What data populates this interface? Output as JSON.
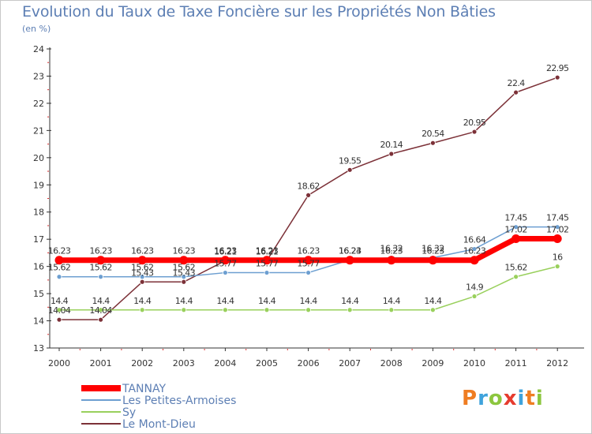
{
  "header": {
    "title": "Evolution du Taux de Taxe Foncière sur les Propriétés Non Bâties",
    "unit": "(en %)"
  },
  "brand": {
    "name": "Proxiti",
    "letters": [
      "P",
      "r",
      "o",
      "x",
      "i",
      "t",
      "i"
    ],
    "colors": [
      "#ef7d22",
      "#3fa3dc",
      "#8cc63e",
      "#e63b2e",
      "#3fa3dc",
      "#ef7d22",
      "#8cc63e"
    ]
  },
  "chart_data": {
    "type": "line",
    "title": "Evolution du Taux de Taxe Foncière sur les Propriétés Non Bâties",
    "ylabel": "(en %)",
    "xlabel": "",
    "x": [
      "2000",
      "2001",
      "2002",
      "2003",
      "2004",
      "2005",
      "2006",
      "2007",
      "2008",
      "2009",
      "2010",
      "2011",
      "2012"
    ],
    "ylim": [
      13,
      24
    ],
    "yticks": [
      "13",
      "14",
      "15",
      "16",
      "17",
      "18",
      "19",
      "20",
      "21",
      "22",
      "23",
      "24"
    ],
    "grid": false,
    "legend_position": "bottom-left",
    "series": [
      {
        "name": "TANNAY",
        "color": "#ff0000",
        "values": [
          16.23,
          16.23,
          16.23,
          16.23,
          16.23,
          16.23,
          16.23,
          16.23,
          16.23,
          16.23,
          16.23,
          17.02,
          17.02
        ],
        "labels": [
          "16.23",
          "16.23",
          "16.23",
          "16.23",
          "16.23",
          "16.23",
          "16.23",
          "16.23",
          "16.23",
          "16.23",
          "16.23",
          "17.02",
          "17.02"
        ]
      },
      {
        "name": "Les Petites-Armoises",
        "color": "#6d9fd1",
        "values": [
          15.62,
          15.62,
          15.62,
          15.62,
          15.77,
          15.77,
          15.77,
          16.24,
          16.32,
          16.32,
          16.64,
          17.45,
          17.45
        ],
        "labels": [
          "15.62",
          "15.62",
          "15.62",
          "15.62",
          "15.77",
          "15.77",
          "15.77",
          "16.24",
          "16.32",
          "16.32",
          "16.64",
          "17.45",
          "17.45"
        ]
      },
      {
        "name": "Sy",
        "color": "#99d05c",
        "values": [
          14.4,
          14.4,
          14.4,
          14.4,
          14.4,
          14.4,
          14.4,
          14.4,
          14.4,
          14.4,
          14.9,
          15.62,
          16
        ],
        "labels": [
          "14.4",
          "14.4",
          "14.4",
          "14.4",
          "14.4",
          "14.4",
          "14.4",
          "14.4",
          "14.4",
          "14.4",
          "14.9",
          "15.62",
          "16"
        ]
      },
      {
        "name": "Le Mont-Dieu",
        "color": "#7c3138",
        "values": [
          14.04,
          14.04,
          15.43,
          15.43,
          16.21,
          16.21,
          18.62,
          19.55,
          20.14,
          20.54,
          20.95,
          22.4,
          22.95
        ],
        "labels": [
          "14.04",
          "14.04",
          "15.43",
          "15.43",
          "16.21",
          "16.21",
          "18.62",
          "19.55",
          "20.14",
          "20.54",
          "20.95",
          "22.4",
          "22.95"
        ]
      }
    ]
  }
}
